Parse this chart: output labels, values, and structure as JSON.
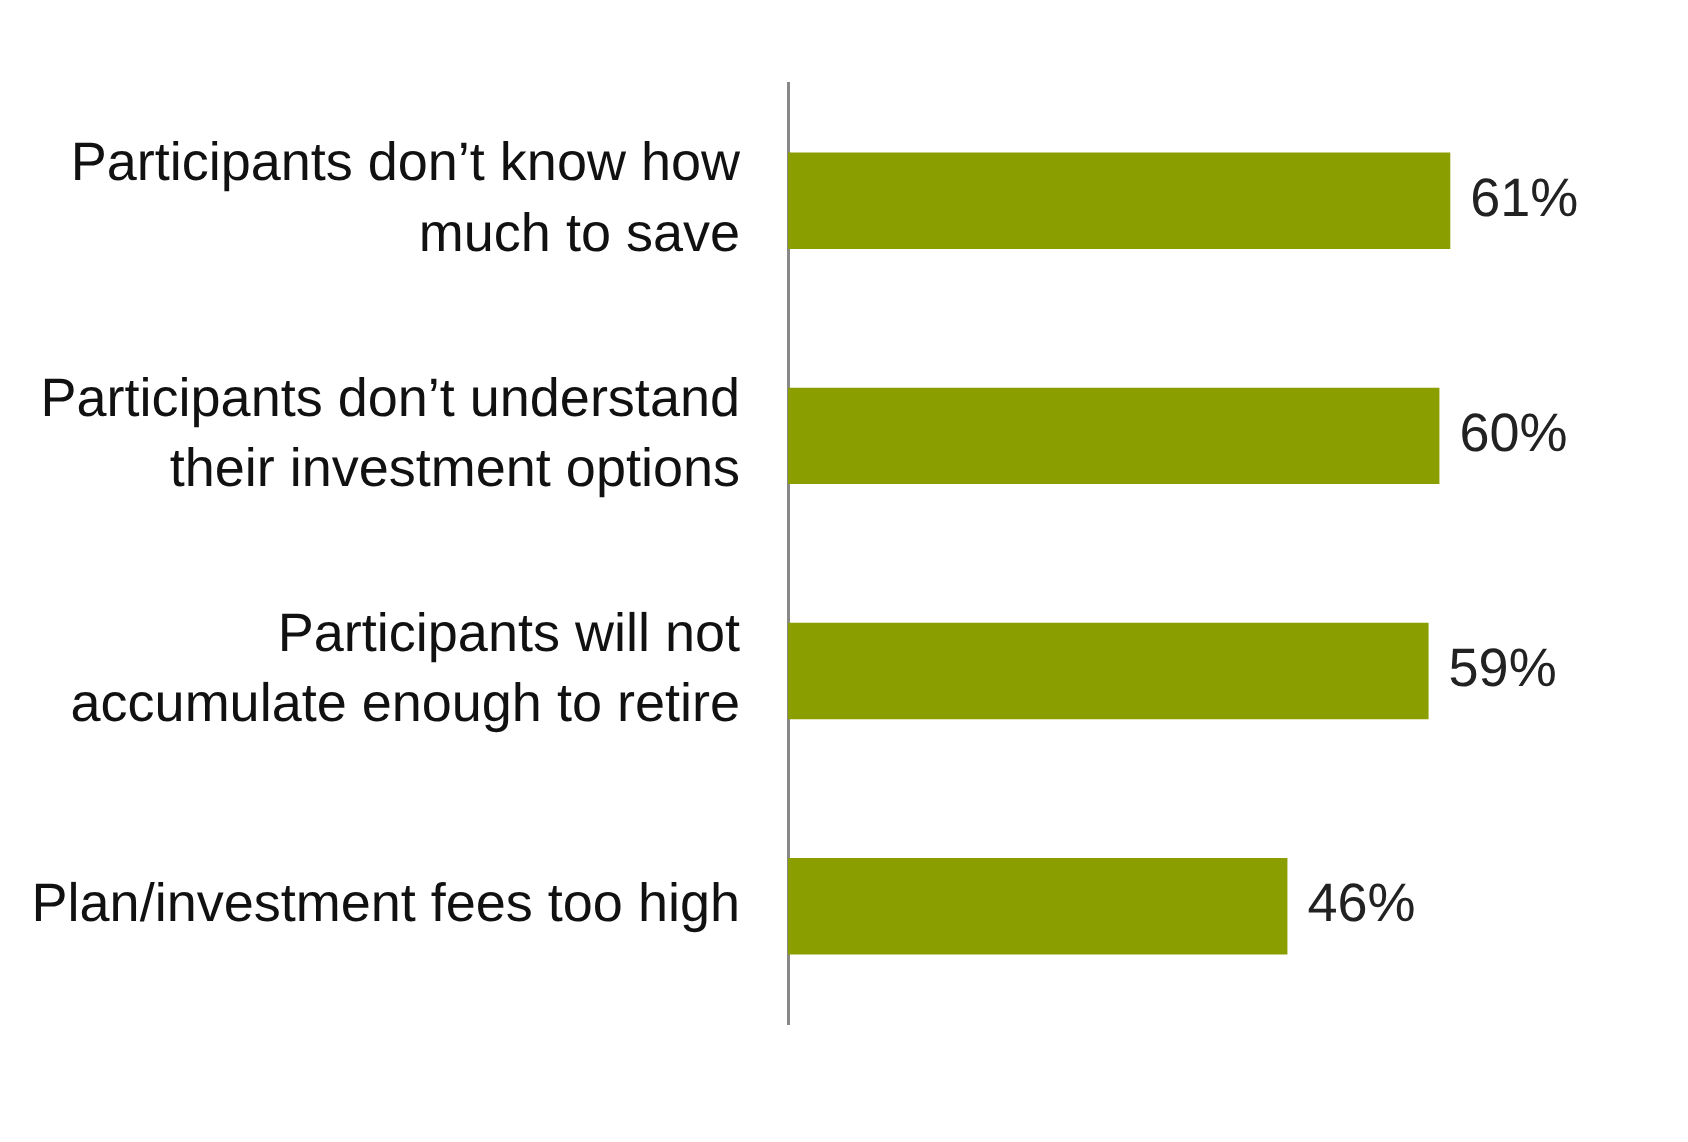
{
  "chart_data": {
    "type": "bar",
    "orientation": "horizontal",
    "categories": [
      "Participants don’t know how much to save",
      "Participants don’t understand their investment options",
      "Participants will not accumulate enough to retire",
      "Plan/investment fees too high"
    ],
    "values": [
      61,
      60,
      59,
      46
    ],
    "color": "#8a9e00",
    "value_labels": [
      "61%",
      "60%",
      "59%",
      "46%"
    ],
    "grid": false,
    "legend": false
  }
}
